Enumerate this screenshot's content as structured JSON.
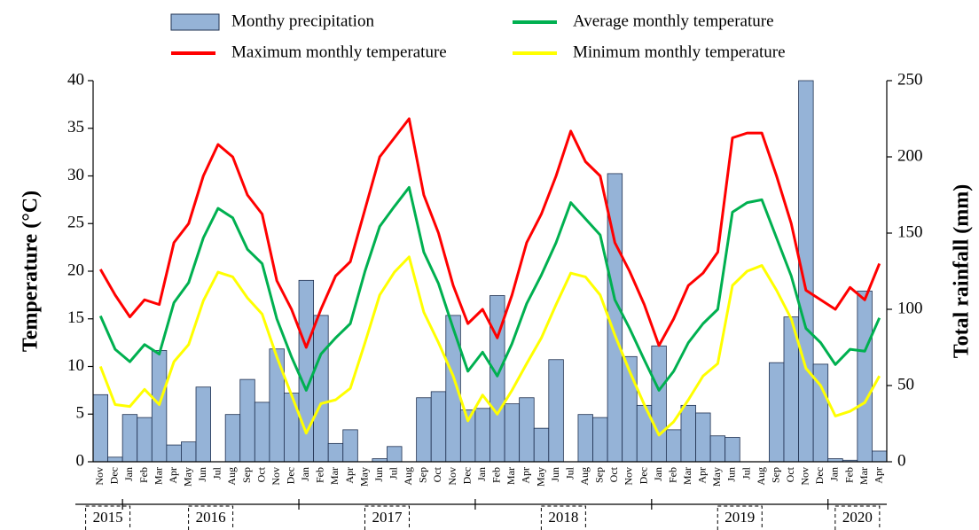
{
  "chart_data": {
    "type": "bar-line",
    "categories": [
      "Nov",
      "Dec",
      "Jan",
      "Feb",
      "Mar",
      "Apr",
      "May",
      "Jun",
      "Jul",
      "Aug",
      "Sep",
      "Oct",
      "Nov",
      "Dec",
      "Jan",
      "Feb",
      "Mar",
      "Apr",
      "May",
      "Jun",
      "Jul",
      "Aug",
      "Sep",
      "Oct",
      "Nov",
      "Dec",
      "Jan",
      "Feb",
      "Mar",
      "Apr",
      "May",
      "Jun",
      "Jul",
      "Aug",
      "Sep",
      "Oct",
      "Nov",
      "Dec",
      "Jan",
      "Feb",
      "Mar",
      "Apr",
      "May",
      "Jun",
      "Jul",
      "Aug",
      "Sep",
      "Oct",
      "Nov",
      "Dec",
      "Jan",
      "Feb",
      "Mar",
      "Apr"
    ],
    "years": [
      "2015",
      "2016",
      "2017",
      "2018",
      "2019",
      "2020"
    ],
    "y_label": "Temperature (°C)",
    "y2_label": "Total rainfall (mm)",
    "ylim": [
      0,
      40
    ],
    "yticks": [
      0,
      5,
      10,
      15,
      20,
      25,
      30,
      35,
      40
    ],
    "y2lim": [
      0,
      250
    ],
    "y2ticks": [
      0,
      50,
      100,
      150,
      200,
      250
    ],
    "series": [
      {
        "name": "Monthy precipitation",
        "kind": "bar",
        "axis": "y2",
        "color": "#95b3d7",
        "values": [
          44,
          3,
          31,
          29,
          73,
          11,
          13,
          49,
          0,
          31,
          54,
          39,
          74,
          45,
          119,
          96,
          12,
          21,
          0,
          2,
          10,
          0,
          42,
          46,
          96,
          34,
          35,
          109,
          38,
          42,
          22,
          67,
          0,
          31,
          29,
          189,
          69,
          37,
          76,
          21,
          37,
          32,
          17,
          16,
          0,
          0,
          65,
          95,
          250,
          64,
          2,
          1,
          112,
          7
        ]
      },
      {
        "name": "Average monthly temperature",
        "kind": "line",
        "color": "#00b050",
        "values": [
          15.3,
          11.8,
          10.5,
          12.3,
          11.3,
          16.7,
          18.8,
          23.5,
          26.6,
          25.6,
          22.3,
          20.8,
          15,
          11,
          7.5,
          11.3,
          13,
          14.5,
          20,
          24.7,
          26.8,
          28.8,
          22,
          18.7,
          14,
          9.5,
          11.5,
          9,
          12.4,
          16.6,
          19.6,
          23,
          27.2,
          25.5,
          23.8,
          17,
          14,
          10.7,
          7.5,
          9.5,
          12.5,
          14.5,
          16,
          26.2,
          27.2,
          27.5,
          23.5,
          19.5,
          14,
          12.5,
          10.2,
          11.8,
          11.6,
          15.1
        ]
      },
      {
        "name": "Maximum monthly temperature",
        "kind": "line",
        "color": "#ff0000",
        "values": [
          20.2,
          17.5,
          15.2,
          17,
          16.5,
          23,
          25,
          30,
          33.3,
          32,
          28,
          26,
          19,
          16,
          12,
          16,
          19.5,
          21,
          26.5,
          32,
          34,
          36,
          28,
          24,
          18.5,
          14.5,
          16,
          13,
          17.5,
          23,
          26,
          30,
          34.7,
          31.5,
          30,
          23,
          20,
          16.5,
          12.2,
          15,
          18.5,
          19.8,
          22,
          34,
          34.5,
          34.5,
          30,
          25,
          18,
          17,
          16,
          18.3,
          17,
          20.8
        ]
      },
      {
        "name": "Minimum monthly temperature",
        "kind": "line",
        "color": "#ffff00",
        "values": [
          10,
          6,
          5.8,
          7.6,
          6,
          10.5,
          12.3,
          16.9,
          19.9,
          19.4,
          17.2,
          15.5,
          11,
          7,
          3,
          6.1,
          6.5,
          7.7,
          12.5,
          17.5,
          19.9,
          21.5,
          15.7,
          12.5,
          9,
          4.3,
          7,
          5,
          7.5,
          10.3,
          13,
          16.5,
          19.8,
          19.4,
          17.5,
          13.3,
          9.5,
          6,
          2.8,
          4.2,
          6.5,
          9,
          10.3,
          18.5,
          20,
          20.6,
          18,
          15,
          9.8,
          8,
          4.8,
          5.3,
          6.2,
          9
        ]
      }
    ]
  }
}
